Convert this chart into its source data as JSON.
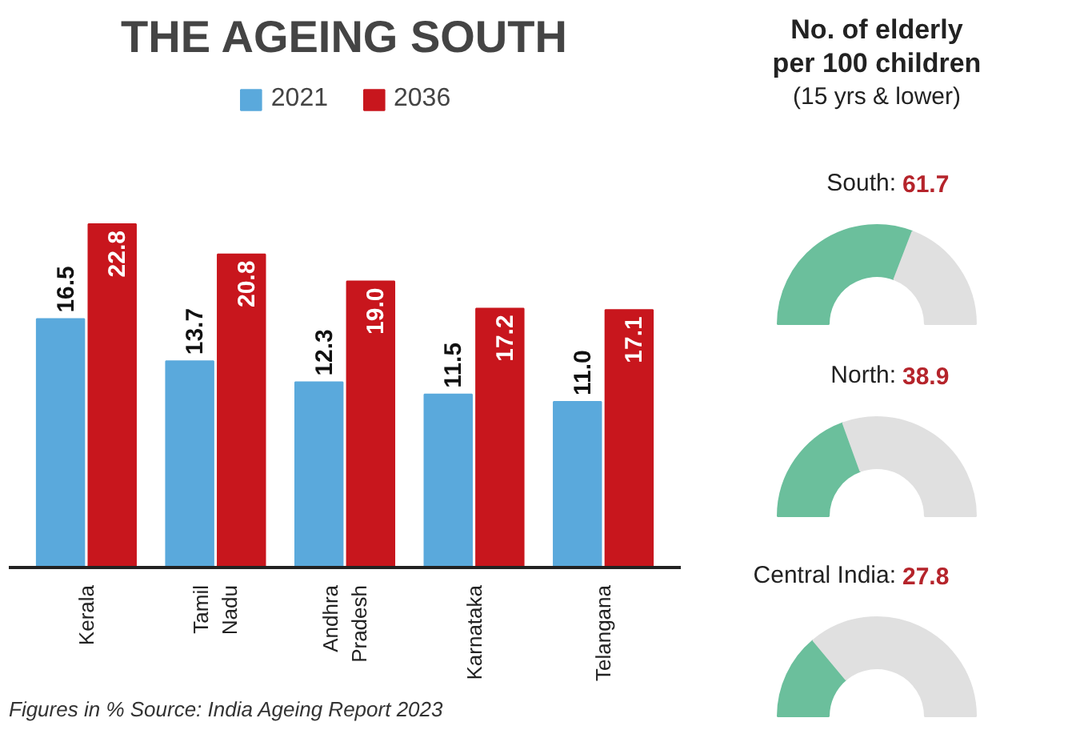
{
  "chart_data": [
    {
      "type": "bar",
      "title": "THE AGEING SOUTH",
      "categories": [
        "Kerala",
        "Tamil Nadu",
        "Andhra Pradesh",
        "Karnataka",
        "Telangana"
      ],
      "series": [
        {
          "name": "2021",
          "color": "#5aa9dc",
          "values": [
            16.5,
            13.7,
            12.3,
            11.5,
            11.0
          ],
          "value_labels": [
            "16.5",
            "13.7",
            "12.3",
            "11.5",
            "11.0"
          ]
        },
        {
          "name": "2036",
          "color": "#c8161d",
          "values": [
            22.8,
            20.8,
            19.0,
            17.2,
            17.1
          ],
          "value_labels": [
            "22.8",
            "20.8",
            "19.0",
            "17.2",
            "17.1"
          ]
        }
      ],
      "legend": "top",
      "annotations": [
        "Figures in %  Source: India Ageing Report 2023"
      ]
    },
    {
      "type": "other",
      "title": "No. of elderly per 100 children",
      "subtitle": "(15 yrs & lower)"
    },
    {
      "type": "donut",
      "title": "South: 61.7",
      "categories": [
        null,
        null
      ],
      "values": [
        61.7,
        38.3
      ],
      "colors": [
        "#6bbf9c",
        "#e0e0e0"
      ]
    },
    {
      "type": "donut",
      "title": "North: 38.9",
      "categories": [
        null,
        null
      ],
      "values": [
        38.9,
        61.1
      ],
      "colors": [
        "#6bbf9c",
        "#e0e0e0"
      ]
    },
    {
      "type": "donut",
      "title": "Central India: 27.8",
      "categories": [
        null,
        null
      ],
      "values": [
        27.8,
        72.2
      ],
      "colors": [
        "#6bbf9c",
        "#e0e0e0"
      ]
    }
  ]
}
